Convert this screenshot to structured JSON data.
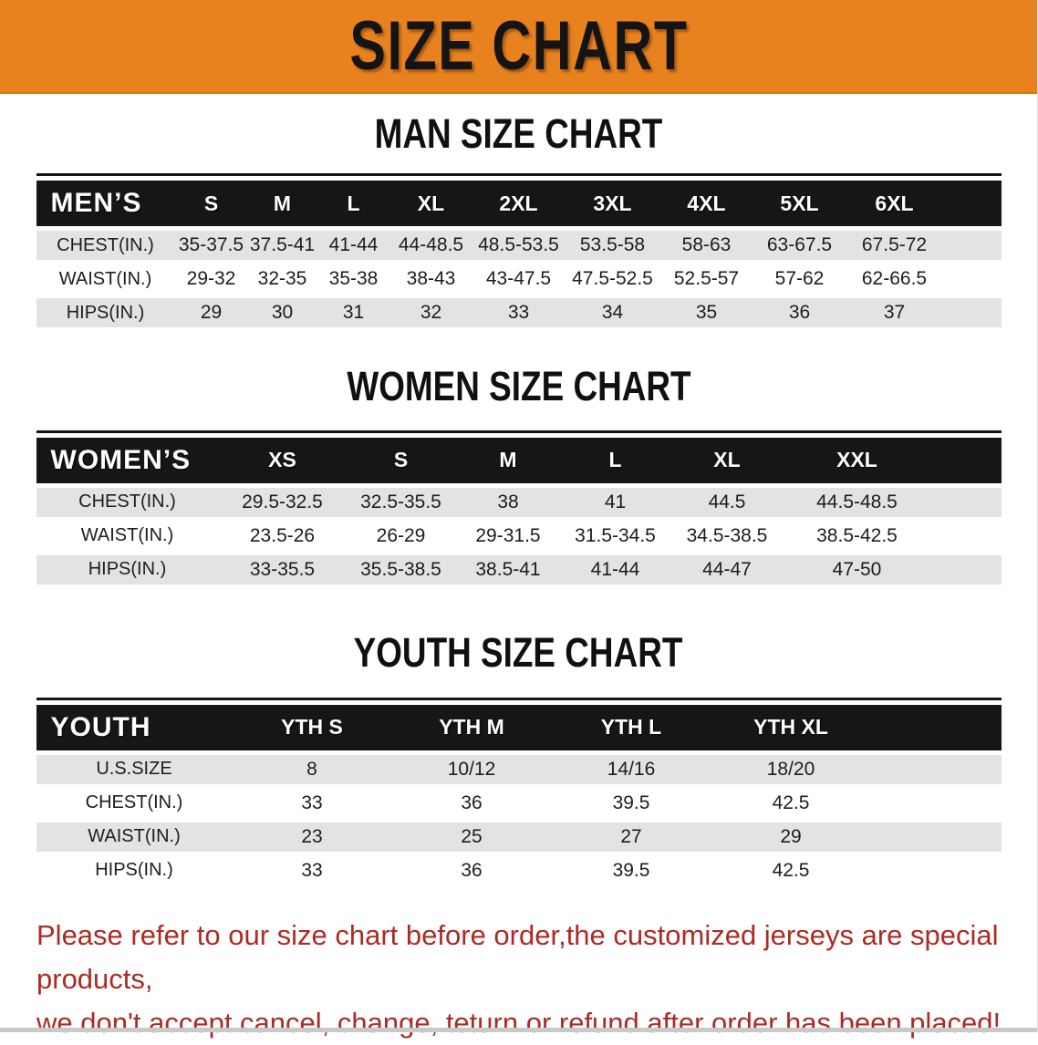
{
  "banner": {
    "title": "SIZE CHART",
    "bg_color": "#E8821E"
  },
  "colors": {
    "table_header_bg": "#161616",
    "row_shade": "#E3E3E3",
    "footer_text": "#AC2B24"
  },
  "sections": [
    {
      "heading": "MAN SIZE CHART",
      "table": {
        "label": "MEN’S",
        "columns": [
          "S",
          "M",
          "L",
          "XL",
          "2XL",
          "3XL",
          "4XL",
          "5XL",
          "6XL"
        ],
        "rows": [
          {
            "label": "CHEST(IN.)",
            "values": [
              "35-37.5",
              "37.5-41",
              "41-44",
              "44-48.5",
              "48.5-53.5",
              "53.5-58",
              "58-63",
              "63-67.5",
              "67.5-72"
            ]
          },
          {
            "label": "WAIST(IN.)",
            "values": [
              "29-32",
              "32-35",
              "35-38",
              "38-43",
              "43-47.5",
              "47.5-52.5",
              "52.5-57",
              "57-62",
              "62-66.5"
            ]
          },
          {
            "label": "HIPS(IN.)",
            "values": [
              "29",
              "30",
              "31",
              "32",
              "33",
              "34",
              "35",
              "36",
              "37"
            ]
          }
        ]
      }
    },
    {
      "heading": "WOMEN SIZE CHART",
      "table": {
        "label": "WOMEN’S",
        "columns": [
          "XS",
          "S",
          "M",
          "L",
          "XL",
          "XXL"
        ],
        "rows": [
          {
            "label": "CHEST(IN.)",
            "values": [
              "29.5-32.5",
              "32.5-35.5",
              "38",
              "41",
              "44.5",
              "44.5-48.5"
            ]
          },
          {
            "label": "WAIST(IN.)",
            "values": [
              "23.5-26",
              "26-29",
              "29-31.5",
              "31.5-34.5",
              "34.5-38.5",
              "38.5-42.5"
            ]
          },
          {
            "label": "HIPS(IN.)",
            "values": [
              "33-35.5",
              "35.5-38.5",
              "38.5-41",
              "41-44",
              "44-47",
              "47-50"
            ]
          }
        ]
      }
    },
    {
      "heading": "YOUTH SIZE CHART",
      "table": {
        "label": "YOUTH",
        "columns": [
          "YTH S",
          "YTH M",
          "YTH L",
          "YTH XL"
        ],
        "rows": [
          {
            "label": "U.S.SIZE",
            "values": [
              "8",
              "10/12",
              "14/16",
              "18/20"
            ]
          },
          {
            "label": "CHEST(IN.)",
            "values": [
              "33",
              "36",
              "39.5",
              "42.5"
            ]
          },
          {
            "label": "WAIST(IN.)",
            "values": [
              "23",
              "25",
              "27",
              "29"
            ]
          },
          {
            "label": "HIPS(IN.)",
            "values": [
              "33",
              "36",
              "39.5",
              "42.5"
            ]
          }
        ]
      }
    }
  ],
  "footer": {
    "line1": "Please refer to our size chart before order,the customized jerseys are special products,",
    "line2": "we don't accept cancel, change, teturn or refund after order has been placed!"
  }
}
